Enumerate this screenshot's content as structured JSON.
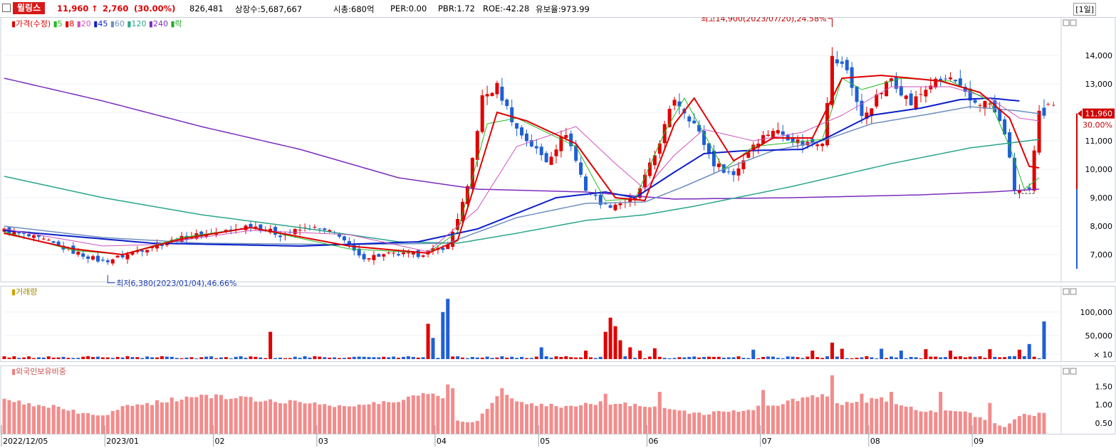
{
  "header": {
    "name": "윌링스",
    "price": "11,960",
    "change_arrow": "↑",
    "change": "2,760",
    "change_pct": "(30.00%)",
    "volume": "826,481",
    "shares": "상장수:5,687,667",
    "mcap": "시총:680억",
    "per": "PER:0.00",
    "pbr": "PBR:1.72",
    "roe": "ROE:-42.28",
    "turnover": "유보율:973.99",
    "period": "[1일]"
  },
  "colors": {
    "up": "#e00000",
    "down": "#1f5fd4",
    "ma5": "#22bb22",
    "ma8": "#e00000",
    "ma20": "#cc55bb",
    "ma45": "#0a1fc8",
    "ma60": "#6f8fbf",
    "ma120": "#2aa58c",
    "ma240": "#7b2dbd",
    "foreign": "#f28c8c"
  },
  "legends": {
    "price": [
      {
        "label": "가격(수정)",
        "color": "#e00000"
      },
      {
        "label": "5",
        "color": "#22bb22"
      },
      {
        "label": "8",
        "color": "#e00000"
      },
      {
        "label": "20",
        "color": "#cc55bb"
      },
      {
        "label": "45",
        "color": "#0a1fc8"
      },
      {
        "label": "60",
        "color": "#6f8fbf"
      },
      {
        "label": "120",
        "color": "#2aa58c"
      },
      {
        "label": "240",
        "color": "#7b2dbd"
      },
      {
        "label": "락",
        "color": "#22aa22"
      }
    ],
    "volume": "거래량",
    "foreign": "외국인보유비중"
  },
  "chart_data": [
    {
      "type": "candlestick",
      "title": "",
      "ylim": [
        6200,
        15200
      ],
      "ticks": [
        "7,000",
        "8,000",
        "9,000",
        "10,000",
        "11,000",
        "12,000",
        "13,000",
        "14,000"
      ],
      "tick_values": [
        7000,
        8000,
        9000,
        10000,
        11000,
        12000,
        13000,
        14000
      ],
      "x_labels": [
        "2022/12/05",
        "2023/01",
        "02",
        "03",
        "04",
        "05",
        "06",
        "07",
        "08",
        "09"
      ],
      "x_label_index": [
        0,
        21,
        43,
        64,
        88,
        109,
        131,
        154,
        176,
        197
      ],
      "n": 212,
      "close_anchors": [
        [
          0,
          7850
        ],
        [
          8,
          7500
        ],
        [
          14,
          7100
        ],
        [
          20,
          6750
        ],
        [
          24,
          6950
        ],
        [
          30,
          7300
        ],
        [
          38,
          7650
        ],
        [
          46,
          7850
        ],
        [
          50,
          8050
        ],
        [
          56,
          7700
        ],
        [
          62,
          7950
        ],
        [
          68,
          7700
        ],
        [
          72,
          6900
        ],
        [
          78,
          7000
        ],
        [
          84,
          7000
        ],
        [
          90,
          7300
        ],
        [
          94,
          9300
        ],
        [
          97,
          12500
        ],
        [
          100,
          12900
        ],
        [
          104,
          11400
        ],
        [
          110,
          10300
        ],
        [
          114,
          11300
        ],
        [
          118,
          9300
        ],
        [
          122,
          8700
        ],
        [
          128,
          8950
        ],
        [
          132,
          10500
        ],
        [
          136,
          12500
        ],
        [
          140,
          11600
        ],
        [
          144,
          10200
        ],
        [
          148,
          9800
        ],
        [
          152,
          10900
        ],
        [
          156,
          11400
        ],
        [
          162,
          10900
        ],
        [
          166,
          11000
        ],
        [
          168,
          13900
        ],
        [
          171,
          13500
        ],
        [
          174,
          11800
        ],
        [
          180,
          13200
        ],
        [
          184,
          12300
        ],
        [
          188,
          13000
        ],
        [
          192,
          13200
        ],
        [
          196,
          12400
        ],
        [
          200,
          12300
        ],
        [
          203,
          11300
        ],
        [
          205,
          9300
        ],
        [
          208,
          9200
        ],
        [
          210,
          11960
        ]
      ],
      "ma_anchors": {
        "ma5": [
          [
            0,
            7800
          ],
          [
            14,
            7150
          ],
          [
            24,
            7000
          ],
          [
            36,
            7600
          ],
          [
            50,
            7950
          ],
          [
            70,
            7200
          ],
          [
            86,
            7050
          ],
          [
            92,
            7800
          ],
          [
            98,
            11600
          ],
          [
            104,
            11800
          ],
          [
            116,
            10800
          ],
          [
            122,
            8900
          ],
          [
            128,
            8950
          ],
          [
            134,
            11300
          ],
          [
            138,
            12500
          ],
          [
            146,
            10000
          ],
          [
            152,
            10800
          ],
          [
            166,
            11050
          ],
          [
            170,
            13200
          ],
          [
            174,
            12800
          ],
          [
            182,
            13200
          ],
          [
            192,
            13100
          ],
          [
            200,
            12400
          ],
          [
            204,
            10800
          ],
          [
            207,
            9300
          ],
          [
            210,
            9700
          ]
        ],
        "ma8": [
          [
            0,
            7750
          ],
          [
            14,
            7200
          ],
          [
            24,
            7000
          ],
          [
            36,
            7550
          ],
          [
            50,
            7950
          ],
          [
            70,
            7300
          ],
          [
            86,
            7050
          ],
          [
            92,
            7500
          ],
          [
            100,
            12000
          ],
          [
            106,
            11700
          ],
          [
            116,
            10900
          ],
          [
            124,
            9000
          ],
          [
            130,
            8900
          ],
          [
            136,
            11600
          ],
          [
            140,
            12500
          ],
          [
            148,
            10300
          ],
          [
            156,
            11100
          ],
          [
            164,
            11100
          ],
          [
            170,
            13200
          ],
          [
            178,
            13300
          ],
          [
            190,
            13100
          ],
          [
            198,
            12700
          ],
          [
            204,
            11800
          ],
          [
            208,
            10100
          ],
          [
            210,
            10050
          ]
        ],
        "ma20": [
          [
            0,
            7900
          ],
          [
            20,
            7300
          ],
          [
            30,
            7350
          ],
          [
            40,
            7600
          ],
          [
            50,
            7850
          ],
          [
            70,
            7700
          ],
          [
            86,
            7100
          ],
          [
            96,
            8600
          ],
          [
            104,
            10800
          ],
          [
            116,
            11500
          ],
          [
            124,
            10200
          ],
          [
            130,
            9300
          ],
          [
            136,
            10500
          ],
          [
            142,
            11400
          ],
          [
            152,
            11000
          ],
          [
            162,
            11300
          ],
          [
            170,
            11900
          ],
          [
            180,
            12900
          ],
          [
            192,
            12900
          ],
          [
            200,
            12500
          ],
          [
            206,
            11800
          ],
          [
            210,
            11700
          ]
        ],
        "ma45": [
          [
            0,
            7850
          ],
          [
            10,
            7700
          ],
          [
            30,
            7400
          ],
          [
            60,
            7300
          ],
          [
            84,
            7450
          ],
          [
            96,
            7900
          ],
          [
            112,
            9000
          ],
          [
            122,
            9200
          ],
          [
            128,
            9000
          ],
          [
            136,
            9900
          ],
          [
            142,
            10550
          ],
          [
            150,
            10650
          ],
          [
            162,
            10700
          ],
          [
            168,
            11200
          ],
          [
            176,
            11900
          ],
          [
            186,
            12150
          ],
          [
            194,
            12450
          ],
          [
            200,
            12500
          ],
          [
            206,
            12400
          ]
        ],
        "ma60": [
          [
            0,
            8000
          ],
          [
            20,
            7600
          ],
          [
            40,
            7400
          ],
          [
            70,
            7350
          ],
          [
            90,
            7400
          ],
          [
            104,
            8300
          ],
          [
            118,
            8800
          ],
          [
            130,
            8850
          ],
          [
            138,
            9400
          ],
          [
            146,
            10000
          ],
          [
            156,
            10650
          ],
          [
            166,
            11000
          ],
          [
            176,
            11600
          ],
          [
            188,
            11950
          ],
          [
            196,
            12200
          ],
          [
            206,
            12050
          ],
          [
            210,
            11950
          ]
        ],
        "ma120": [
          [
            0,
            9750
          ],
          [
            20,
            9000
          ],
          [
            40,
            8400
          ],
          [
            60,
            7950
          ],
          [
            80,
            7450
          ],
          [
            92,
            7400
          ],
          [
            104,
            7750
          ],
          [
            118,
            8200
          ],
          [
            130,
            8400
          ],
          [
            140,
            8700
          ],
          [
            160,
            9400
          ],
          [
            180,
            10200
          ],
          [
            196,
            10750
          ],
          [
            210,
            11050
          ]
        ],
        "ma240": [
          [
            0,
            13200
          ],
          [
            20,
            12400
          ],
          [
            40,
            11500
          ],
          [
            60,
            10700
          ],
          [
            80,
            9700
          ],
          [
            96,
            9300
          ],
          [
            118,
            9200
          ],
          [
            136,
            8950
          ],
          [
            160,
            9000
          ],
          [
            186,
            9100
          ],
          [
            200,
            9200
          ],
          [
            210,
            9300
          ]
        ]
      },
      "annotations": [
        {
          "text": "최고14,900(2023/07/20),24.58%",
          "index": 168,
          "price": 14900
        },
        {
          "text": "최저6,380(2023/01/04),46.66%",
          "index": 21,
          "price": 6380
        }
      ],
      "last_price_label": "11,960",
      "last_pct_label": "30.00%",
      "last_marker": "+↓"
    },
    {
      "type": "bar",
      "title": "",
      "ticks": [
        "100,000",
        "50,000",
        "× 10"
      ],
      "tick_values": [
        100000,
        50000,
        10000
      ],
      "ylim": [
        0,
        145000
      ],
      "spikes": [
        [
          54,
          58000
        ],
        [
          86,
          75000
        ],
        [
          87,
          45000
        ],
        [
          89,
          100000
        ],
        [
          90,
          128000
        ],
        [
          109,
          25000
        ],
        [
          118,
          18000
        ],
        [
          122,
          58000
        ],
        [
          123,
          88000
        ],
        [
          124,
          70000
        ],
        [
          125,
          40000
        ],
        [
          127,
          25000
        ],
        [
          129,
          18000
        ],
        [
          132,
          23000
        ],
        [
          152,
          20000
        ],
        [
          164,
          18000
        ],
        [
          168,
          35000
        ],
        [
          170,
          22000
        ],
        [
          178,
          22000
        ],
        [
          182,
          18000
        ],
        [
          187,
          21000
        ],
        [
          192,
          18000
        ],
        [
          200,
          21000
        ],
        [
          206,
          20000
        ],
        [
          208,
          32000
        ],
        [
          211,
          80000
        ]
      ]
    },
    {
      "type": "bar",
      "title": "",
      "ticks": [
        "1.50",
        "1.00",
        "0.50"
      ],
      "tick_values": [
        1.5,
        1.0,
        0.5
      ],
      "ylim": [
        0.25,
        1.95
      ],
      "anchors": [
        [
          0,
          1.1
        ],
        [
          10,
          0.95
        ],
        [
          16,
          0.75
        ],
        [
          21,
          0.7
        ],
        [
          24,
          1.0
        ],
        [
          30,
          1.05
        ],
        [
          40,
          1.25
        ],
        [
          50,
          1.15
        ],
        [
          62,
          1.05
        ],
        [
          70,
          0.95
        ],
        [
          80,
          1.1
        ],
        [
          86,
          1.35
        ],
        [
          90,
          1.2
        ],
        [
          92,
          0.55
        ],
        [
          96,
          0.55
        ],
        [
          100,
          1.3
        ],
        [
          106,
          1.05
        ],
        [
          112,
          0.95
        ],
        [
          120,
          1.05
        ],
        [
          130,
          1.0
        ],
        [
          136,
          0.85
        ],
        [
          142,
          0.75
        ],
        [
          150,
          0.85
        ],
        [
          160,
          1.1
        ],
        [
          166,
          1.25
        ],
        [
          170,
          1.05
        ],
        [
          178,
          1.15
        ],
        [
          186,
          0.85
        ],
        [
          194,
          0.85
        ],
        [
          200,
          0.55
        ],
        [
          203,
          0.4
        ],
        [
          206,
          0.7
        ],
        [
          211,
          0.75
        ]
      ],
      "peaks": [
        [
          90,
          1.55
        ],
        [
          91,
          1.45
        ],
        [
          101,
          1.45
        ],
        [
          122,
          1.3
        ],
        [
          133,
          1.35
        ],
        [
          154,
          1.4
        ],
        [
          168,
          1.8
        ],
        [
          174,
          1.3
        ],
        [
          180,
          1.35
        ],
        [
          190,
          1.35
        ],
        [
          200,
          1.05
        ]
      ]
    }
  ]
}
